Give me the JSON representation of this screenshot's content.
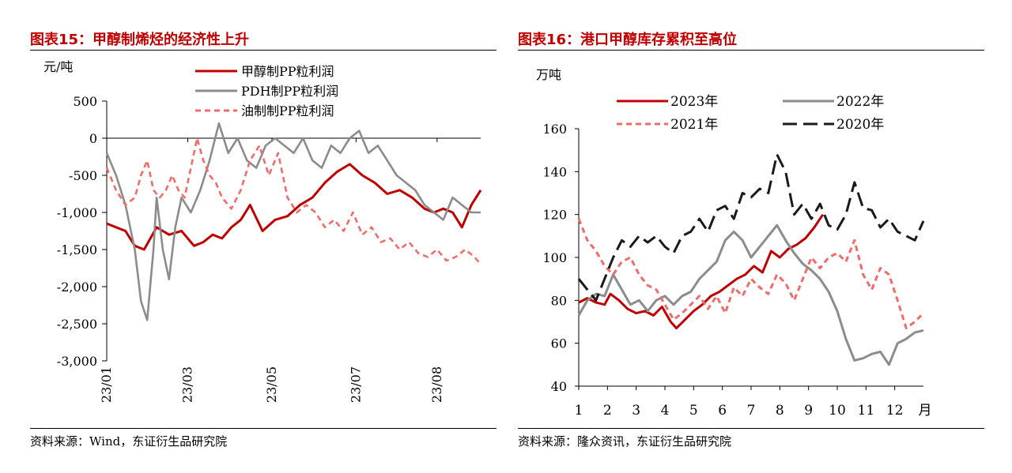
{
  "colors": {
    "title": "#c00000",
    "red": "#c00000",
    "gray": "#8c8c8c",
    "pink": "#f26b6b",
    "black": "#1a1a1a"
  },
  "left": {
    "title": "图表15：甲醇制烯烃的经济性上升",
    "source": "资料来源：Wind，东证衍生品研究院",
    "chart_data": {
      "type": "line",
      "ylabel": "元/吨",
      "ylim": [
        -3000,
        500
      ],
      "yticks": [
        500,
        0,
        -500,
        -1000,
        -1500,
        -2000,
        -2500,
        -3000
      ],
      "ytick_labels": [
        "500",
        "0",
        "-500",
        "-1,000",
        "-1,500",
        "-2,000",
        "-2,500",
        "-3,000"
      ],
      "xticks": [
        "23/01",
        "23/03",
        "23/05",
        "23/07",
        "23/08"
      ],
      "legend_position": "top-right",
      "series": [
        {
          "name": "甲醇制PP粒利润",
          "style": "solid",
          "color": "#c00000",
          "x": [
            0,
            3,
            6,
            9,
            12,
            16,
            20,
            24,
            28,
            31,
            34,
            37,
            40,
            43,
            46,
            50,
            54,
            58,
            62,
            66,
            70,
            74,
            78,
            82,
            86,
            90,
            94,
            98,
            102,
            105,
            108,
            111,
            114,
            117,
            120
          ],
          "y": [
            -1150,
            -1200,
            -1250,
            -1450,
            -1500,
            -1200,
            -1300,
            -1250,
            -1450,
            -1400,
            -1300,
            -1350,
            -1200,
            -1100,
            -900,
            -1250,
            -1100,
            -1050,
            -900,
            -800,
            -600,
            -450,
            -350,
            -500,
            -600,
            -750,
            -700,
            -800,
            -950,
            -1000,
            -950,
            -1000,
            -1200,
            -900,
            -700
          ]
        },
        {
          "name": "PDH制PP粒利润",
          "style": "solid",
          "color": "#8c8c8c",
          "x": [
            0,
            3,
            6,
            9,
            11,
            13,
            15,
            16,
            18,
            20,
            22,
            24,
            27,
            30,
            33,
            36,
            39,
            42,
            45,
            48,
            51,
            54,
            57,
            60,
            63,
            66,
            69,
            72,
            75,
            78,
            81,
            84,
            87,
            90,
            93,
            96,
            99,
            102,
            105,
            108,
            111,
            114,
            117,
            120
          ],
          "y": [
            -200,
            -500,
            -900,
            -1500,
            -2200,
            -2450,
            -1500,
            -800,
            -1500,
            -1900,
            -1200,
            -800,
            -1000,
            -700,
            -300,
            200,
            -200,
            0,
            -300,
            -400,
            -100,
            0,
            -100,
            -200,
            0,
            -300,
            -400,
            -100,
            -200,
            0,
            100,
            -200,
            -100,
            -300,
            -500,
            -600,
            -700,
            -900,
            -1000,
            -1100,
            -800,
            -900,
            -1000,
            -1000
          ]
        },
        {
          "name": "油制制PP粒利润",
          "style": "dashed",
          "color": "#f26b6b",
          "x": [
            0,
            3,
            6,
            9,
            11,
            13,
            15,
            17,
            19,
            21,
            23,
            25,
            27,
            29,
            31,
            33,
            35,
            37,
            40,
            43,
            46,
            49,
            52,
            55,
            58,
            61,
            64,
            67,
            70,
            73,
            76,
            79,
            82,
            85,
            88,
            91,
            94,
            97,
            100,
            103,
            106,
            109,
            112,
            115,
            118,
            120
          ],
          "y": [
            -400,
            -700,
            -900,
            -800,
            -500,
            -300,
            -700,
            -800,
            -700,
            -500,
            -700,
            -800,
            -400,
            0,
            -300,
            -500,
            -600,
            -800,
            -950,
            -700,
            -300,
            -100,
            -500,
            -200,
            -800,
            -1000,
            -900,
            -1000,
            -1200,
            -1100,
            -1250,
            -1000,
            -1300,
            -1200,
            -1400,
            -1350,
            -1500,
            -1400,
            -1550,
            -1600,
            -1500,
            -1650,
            -1600,
            -1500,
            -1600,
            -1700
          ]
        }
      ]
    }
  },
  "right": {
    "title": "图表16：港口甲醇库存累积至高位",
    "source": "资料来源：隆众资讯，东证衍生品研究院",
    "chart_data": {
      "type": "line",
      "ylabel": "万吨",
      "xlabel": "月",
      "ylim": [
        40,
        160
      ],
      "xlim": [
        1,
        13
      ],
      "yticks": [
        40,
        60,
        80,
        100,
        120,
        140,
        160
      ],
      "xticks": [
        1,
        2,
        3,
        4,
        5,
        6,
        7,
        8,
        9,
        10,
        11,
        12
      ],
      "legend_position": "top",
      "series": [
        {
          "name": "2023年",
          "style": "solid",
          "color": "#c00000",
          "x": [
            1.0,
            1.3,
            1.6,
            1.9,
            2.1,
            2.4,
            2.7,
            3.0,
            3.3,
            3.6,
            3.9,
            4.2,
            4.4,
            4.7,
            5.0,
            5.3,
            5.6,
            5.9,
            6.2,
            6.5,
            6.8,
            7.1,
            7.4,
            7.7,
            8.0,
            8.3,
            8.6,
            8.9,
            9.2,
            9.5
          ],
          "y": [
            79,
            81,
            79,
            78,
            83,
            80,
            76,
            74,
            75,
            73,
            77,
            70,
            67,
            71,
            75,
            78,
            82,
            84,
            87,
            90,
            92,
            96,
            93,
            103,
            100,
            104,
            106,
            109,
            114,
            120
          ]
        },
        {
          "name": "2022年",
          "style": "solid",
          "color": "#8c8c8c",
          "x": [
            1.0,
            1.3,
            1.6,
            1.9,
            2.2,
            2.5,
            2.8,
            3.1,
            3.4,
            3.7,
            4.0,
            4.3,
            4.6,
            4.9,
            5.2,
            5.5,
            5.8,
            6.1,
            6.4,
            6.7,
            7.0,
            7.3,
            7.6,
            7.9,
            8.2,
            8.5,
            8.8,
            9.1,
            9.4,
            9.7,
            10.0,
            10.3,
            10.6,
            10.9,
            11.2,
            11.5,
            11.8,
            12.1,
            12.4,
            12.7,
            13.0
          ],
          "y": [
            73,
            80,
            83,
            82,
            92,
            85,
            78,
            80,
            75,
            80,
            82,
            78,
            82,
            84,
            90,
            94,
            98,
            108,
            112,
            108,
            100,
            105,
            110,
            115,
            108,
            102,
            97,
            94,
            90,
            84,
            75,
            62,
            52,
            53,
            55,
            56,
            50,
            60,
            62,
            65,
            66
          ]
        },
        {
          "name": "2021年",
          "style": "dashed",
          "color": "#f26b6b",
          "x": [
            1.0,
            1.3,
            1.6,
            1.9,
            2.2,
            2.5,
            2.8,
            3.1,
            3.4,
            3.7,
            4.0,
            4.3,
            4.6,
            4.9,
            5.2,
            5.5,
            5.8,
            6.1,
            6.4,
            6.7,
            7.0,
            7.3,
            7.6,
            7.9,
            8.2,
            8.5,
            8.8,
            9.1,
            9.4,
            9.7,
            10.0,
            10.3,
            10.6,
            10.9,
            11.2,
            11.5,
            11.8,
            12.1,
            12.4,
            12.7,
            13.0
          ],
          "y": [
            118,
            108,
            103,
            96,
            92,
            98,
            100,
            92,
            87,
            85,
            78,
            71,
            74,
            78,
            82,
            76,
            82,
            74,
            86,
            82,
            90,
            86,
            83,
            92,
            88,
            80,
            90,
            100,
            95,
            100,
            102,
            98,
            108,
            92,
            85,
            95,
            92,
            80,
            67,
            70,
            74
          ]
        },
        {
          "name": "2020年",
          "style": "longdash",
          "color": "#1a1a1a",
          "x": [
            1.0,
            1.3,
            1.6,
            1.9,
            2.2,
            2.5,
            2.8,
            3.1,
            3.4,
            3.7,
            4.0,
            4.3,
            4.6,
            4.9,
            5.2,
            5.5,
            5.8,
            6.1,
            6.4,
            6.7,
            7.0,
            7.3,
            7.6,
            7.9,
            8.2,
            8.5,
            8.8,
            9.1,
            9.4,
            9.7,
            10.0,
            10.3,
            10.6,
            10.9,
            11.2,
            11.5,
            11.8,
            12.1,
            12.4,
            12.7,
            13.0
          ],
          "y": [
            90,
            85,
            80,
            90,
            100,
            108,
            105,
            110,
            107,
            110,
            105,
            102,
            110,
            112,
            118,
            112,
            122,
            124,
            118,
            130,
            128,
            132,
            130,
            148,
            140,
            120,
            125,
            118,
            125,
            115,
            113,
            120,
            135,
            123,
            122,
            114,
            118,
            112,
            110,
            108,
            117
          ]
        }
      ]
    }
  }
}
